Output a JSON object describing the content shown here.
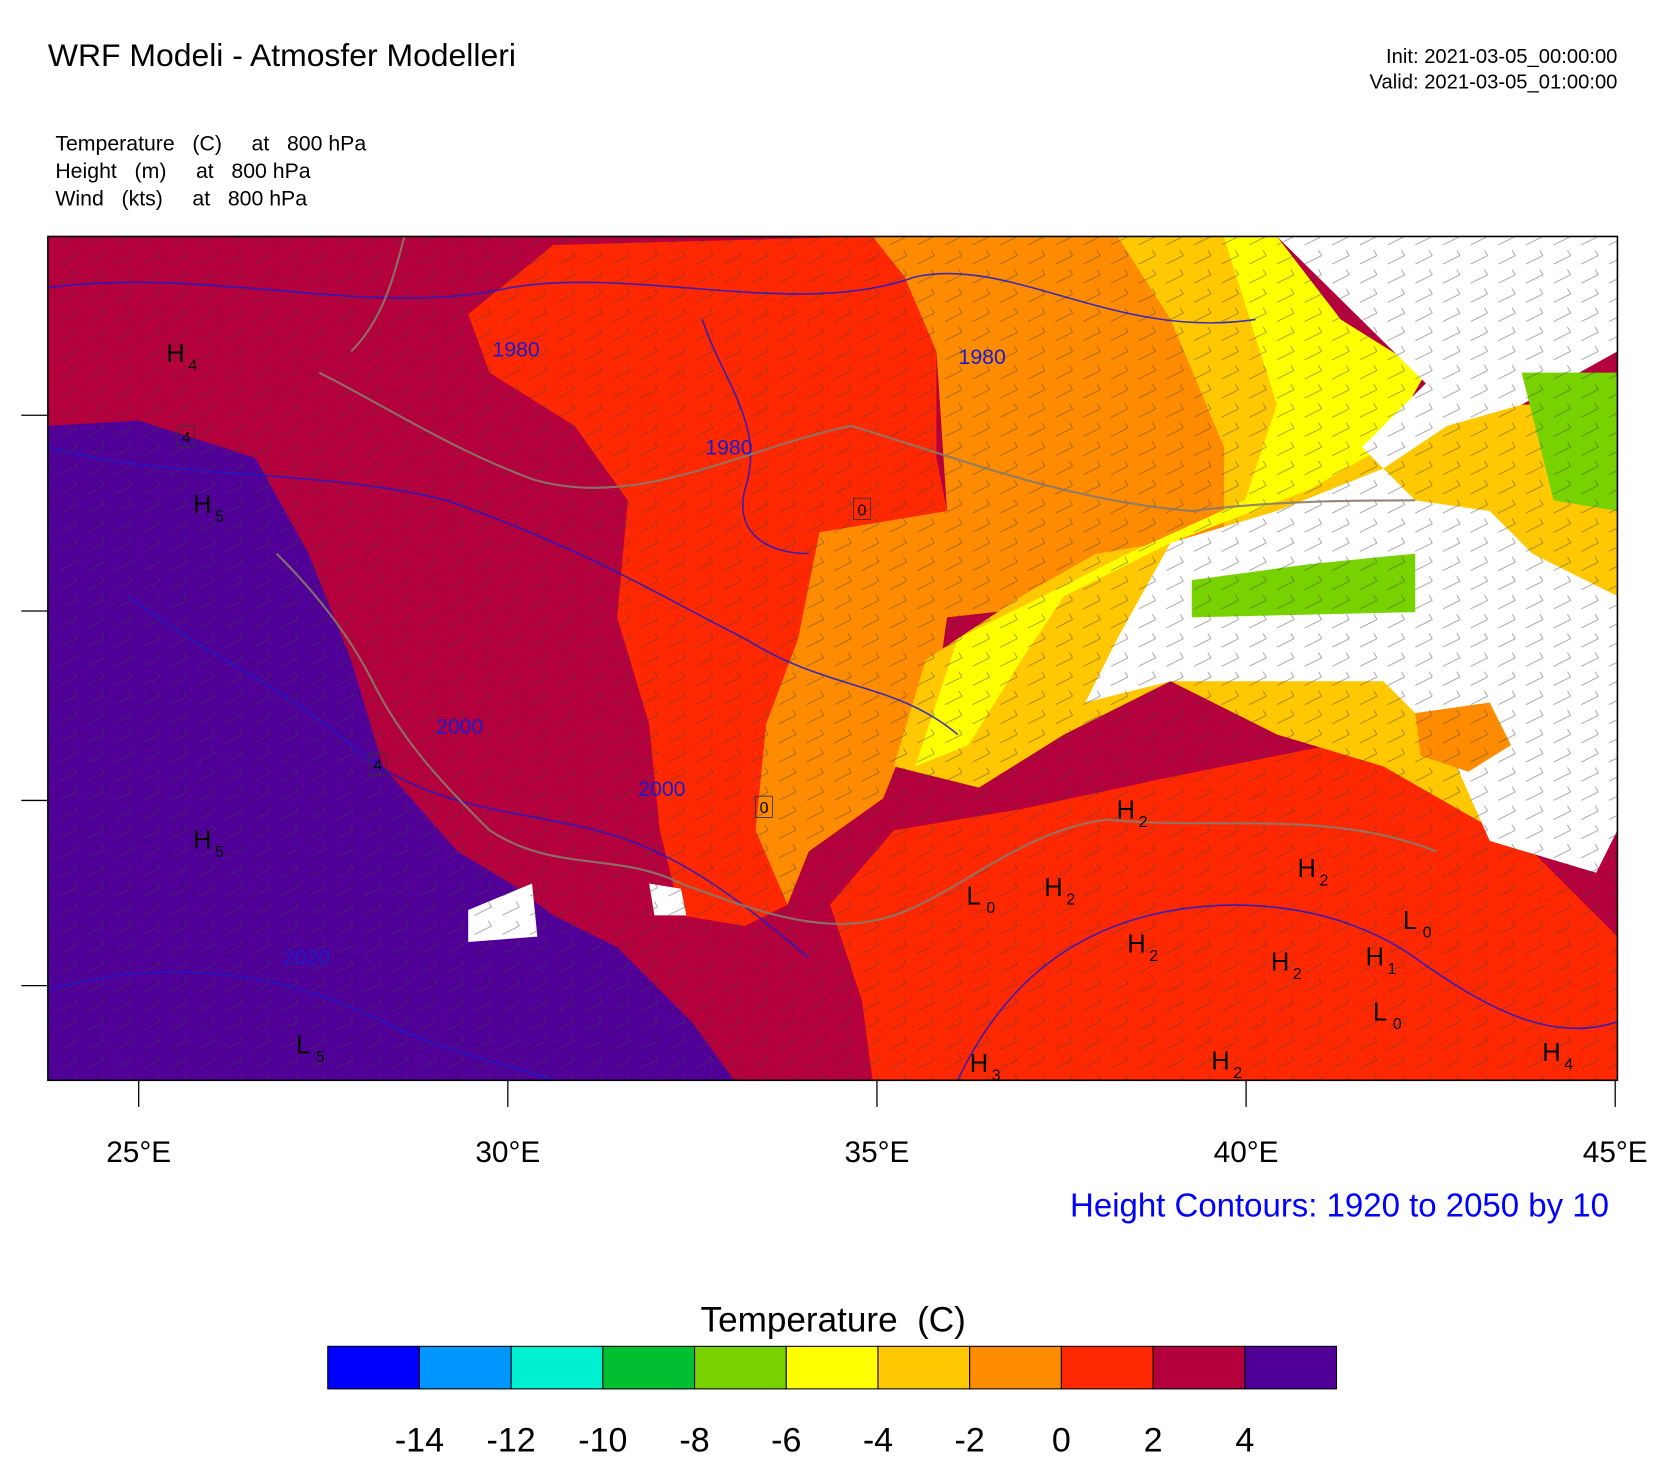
{
  "header": {
    "title": "WRF Modeli - Atmosfer Modelleri",
    "init": "Init: 2021-03-05_00:00:00",
    "valid": "Valid: 2021-03-05_01:00:00",
    "fields": [
      "Temperature   (C)     at   800 hPa",
      "Height   (m)     at   800 hPa",
      "Wind   (kts)     at   800 hPa"
    ]
  },
  "map": {
    "lon_range": [
      23.77,
      45.03
    ],
    "lon_ticks": [
      {
        "value": 25,
        "label": "25°E"
      },
      {
        "value": 30,
        "label": "30°E"
      },
      {
        "value": 35,
        "label": "35°E"
      },
      {
        "value": 40,
        "label": "40°E"
      },
      {
        "value": 45,
        "label": "45°E"
      }
    ],
    "contour_labels": [
      "1980",
      "1980",
      "1980",
      "2000",
      "2000",
      "2020"
    ],
    "box_labels": [
      "4",
      "4",
      "0",
      "0"
    ],
    "pressure_centers": [
      {
        "letter": "H",
        "sub": "4"
      },
      {
        "letter": "H",
        "sub": "5"
      },
      {
        "letter": "H",
        "sub": "5"
      },
      {
        "letter": "H",
        "sub": "2"
      },
      {
        "letter": "H",
        "sub": "2"
      },
      {
        "letter": "L",
        "sub": "0"
      },
      {
        "letter": "H",
        "sub": "2"
      },
      {
        "letter": "H",
        "sub": "2"
      },
      {
        "letter": "H",
        "sub": "2"
      },
      {
        "letter": "L",
        "sub": "0"
      },
      {
        "letter": "H",
        "sub": "1"
      },
      {
        "letter": "L",
        "sub": "0"
      },
      {
        "letter": "H",
        "sub": "4"
      },
      {
        "letter": "H",
        "sub": "2"
      },
      {
        "letter": "H",
        "sub": "3"
      },
      {
        "letter": "L",
        "sub": "5"
      }
    ],
    "contour_note": "Height Contours: 1920 to 2050 by 10"
  },
  "colorbar": {
    "title": "Temperature  (C)",
    "colors": [
      "#0000ff",
      "#0096ff",
      "#00f0d2",
      "#00c032",
      "#78d200",
      "#ffff00",
      "#ffc800",
      "#ff8c00",
      "#ff2800",
      "#b4003c",
      "#500096"
    ],
    "labels": [
      -14,
      -12,
      -10,
      -8,
      -6,
      -4,
      -2,
      0,
      2,
      4
    ]
  }
}
